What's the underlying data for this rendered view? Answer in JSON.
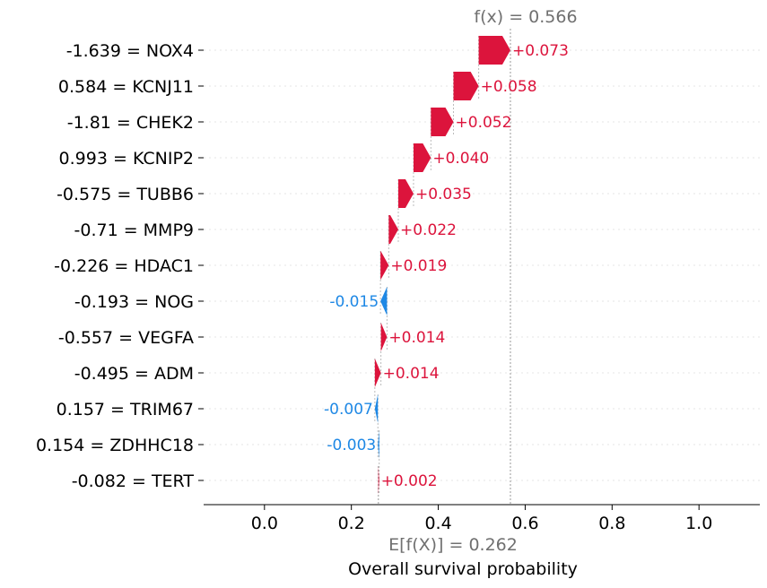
{
  "chart_data": {
    "type": "waterfall",
    "xlabel": "Overall survival probability",
    "xlim": [
      -0.14,
      1.14
    ],
    "xticks": [
      0.0,
      0.2,
      0.4,
      0.6,
      0.8,
      1.0
    ],
    "xtick_labels": [
      "0.0",
      "0.2",
      "0.4",
      "0.6",
      "0.8",
      "1.0"
    ],
    "base_value": 0.262,
    "base_label": "E[f(X)] = 0.262",
    "fx_value": 0.566,
    "fx_label": "f(x) = 0.566",
    "features": [
      {
        "label": "-1.639 = NOX4",
        "value": 0.073,
        "text": "+0.073"
      },
      {
        "label": "0.584 = KCNJ11",
        "value": 0.058,
        "text": "+0.058"
      },
      {
        "label": "-1.81 = CHEK2",
        "value": 0.052,
        "text": "+0.052"
      },
      {
        "label": "0.993 = KCNIP2",
        "value": 0.04,
        "text": "+0.040"
      },
      {
        "label": "-0.575 = TUBB6",
        "value": 0.035,
        "text": "+0.035"
      },
      {
        "label": "-0.71 = MMP9",
        "value": 0.022,
        "text": "+0.022"
      },
      {
        "label": "-0.226 = HDAC1",
        "value": 0.019,
        "text": "+0.019"
      },
      {
        "label": "-0.193 = NOG",
        "value": -0.015,
        "text": "-0.015"
      },
      {
        "label": "-0.557 = VEGFA",
        "value": 0.014,
        "text": "+0.014"
      },
      {
        "label": "-0.495 = ADM",
        "value": 0.014,
        "text": "+0.014"
      },
      {
        "label": "0.157 = TRIM67",
        "value": -0.007,
        "text": "-0.007"
      },
      {
        "label": "0.154 = ZDHHC18",
        "value": -0.003,
        "text": "-0.003"
      },
      {
        "label": "-0.082 = TERT",
        "value": 0.002,
        "text": "+0.002"
      }
    ],
    "colors": {
      "positive": "#dc143c",
      "negative": "#1e88e5",
      "expected_text": "#707070",
      "guide_line": "#bbbbbb",
      "row_grid": "#e6e6e6",
      "axis": "#000000"
    }
  }
}
